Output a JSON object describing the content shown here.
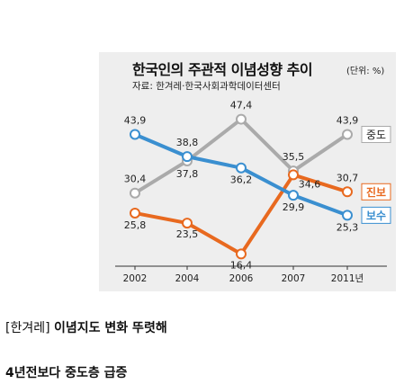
{
  "chart": {
    "title": "한국인의 주관적 이념성향 추이",
    "unit": "(단위: %)",
    "source": "자료: 한겨레·한국사회과학데이터센터"
  },
  "chart_data": {
    "type": "line",
    "categories": [
      "2002",
      "2004",
      "2006",
      "2007",
      "2011년"
    ],
    "series": [
      {
        "name": "중도",
        "values": [
          30.4,
          37.8,
          47.4,
          35.5,
          43.9
        ],
        "color": "#aaaaaa"
      },
      {
        "name": "진보",
        "values": [
          25.8,
          23.5,
          16.4,
          34.6,
          30.7
        ],
        "color": "#e8691f"
      },
      {
        "name": "보수",
        "values": [
          43.9,
          38.8,
          36.2,
          29.9,
          25.3
        ],
        "color": "#3a8fd0"
      }
    ],
    "data_labels": [
      [
        "30,4",
        "37,8",
        "47,4",
        "35,5",
        "43,9"
      ],
      [
        "25,8",
        "23,5",
        "16,4",
        "34,6",
        "30,7"
      ],
      [
        "43,9",
        "38,8",
        "36,2",
        "29,9",
        "25,3"
      ]
    ],
    "ylim": [
      14,
      50
    ],
    "grid": false,
    "legend": "right-end labels"
  },
  "caption": {
    "tag": "[한겨레]",
    "headline": "이념지도 변화 뚜렷해"
  },
  "subhead": "4년전보다 중도층 급증"
}
